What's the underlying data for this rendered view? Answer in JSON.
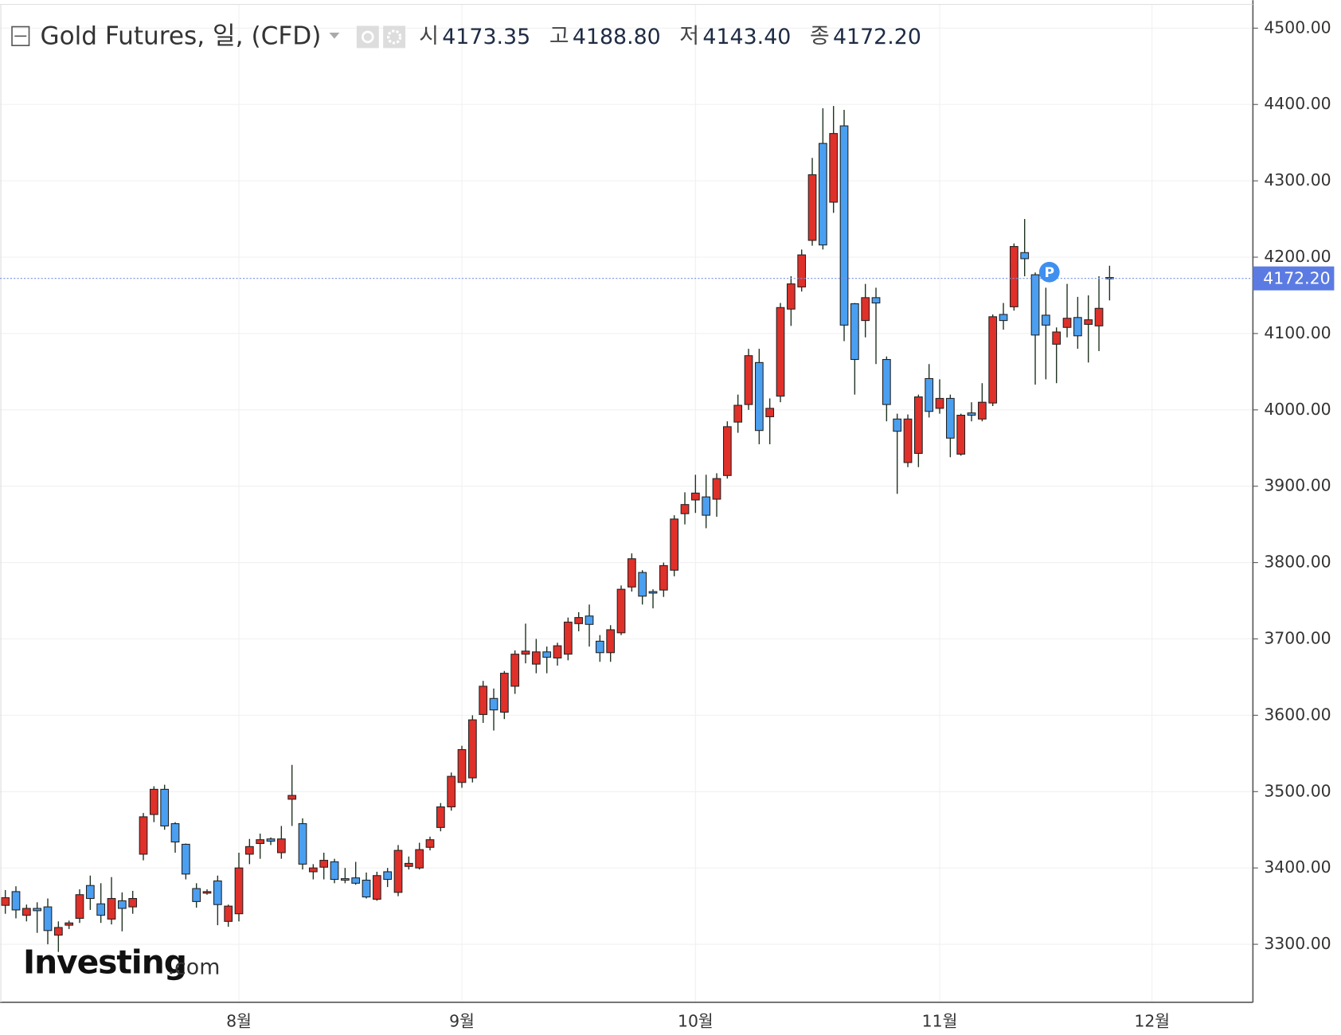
{
  "chart_data": {
    "type": "candlestick",
    "title": "Gold Futures, 일, (CFD)",
    "ohlc_legend": [
      {
        "label": "시",
        "value": "4173.35"
      },
      {
        "label": "고",
        "value": "4188.80"
      },
      {
        "label": "저",
        "value": "4143.40"
      },
      {
        "label": "종",
        "value": "4172.20"
      }
    ],
    "categories": [
      null,
      null,
      null,
      null,
      null,
      null,
      null,
      null,
      null,
      null,
      null,
      null,
      null,
      null,
      null,
      null,
      null,
      null,
      null,
      null,
      null,
      null,
      "8월",
      null,
      null,
      null,
      null,
      null,
      null,
      null,
      null,
      null,
      null,
      null,
      null,
      null,
      null,
      null,
      null,
      null,
      null,
      null,
      null,
      "9월",
      null,
      null,
      null,
      null,
      null,
      null,
      null,
      null,
      null,
      null,
      null,
      null,
      null,
      null,
      null,
      null,
      null,
      null,
      null,
      null,
      null,
      "10월",
      null,
      null,
      null,
      null,
      null,
      null,
      null,
      null,
      null,
      null,
      null,
      null,
      null,
      null,
      null,
      null,
      null,
      null,
      null,
      null,
      null,
      null,
      "11월",
      null,
      null,
      null,
      null,
      null,
      null,
      null,
      null,
      null,
      null,
      null,
      null,
      null,
      null,
      null,
      null,
      null,
      null,
      null,
      "12월",
      null,
      null,
      null,
      null,
      null,
      null,
      null,
      null,
      null
    ],
    "open": [
      3351,
      3369,
      3338,
      3347,
      3349,
      3312,
      3325,
      3334,
      3377,
      3353,
      3333,
      3357,
      3349,
      3418,
      3470,
      3503,
      3458,
      3431,
      3373,
      3367,
      3383,
      3330,
      3340,
      3418,
      3432,
      3438,
      3420,
      3490,
      3458,
      3395,
      3401,
      3408,
      3386,
      3387,
      3384,
      3359,
      3395,
      3368,
      3402,
      3400,
      3427,
      3453,
      3480,
      3512,
      3518,
      3601,
      3622,
      3604,
      3638,
      3680,
      3667,
      3683,
      3675,
      3680,
      3720,
      3730,
      3697,
      3682,
      3708,
      3768,
      3787,
      3762,
      3764,
      3790,
      3864,
      3882,
      3886,
      3883,
      3914,
      3984,
      4007,
      4062,
      3991,
      4018,
      4132,
      4161,
      4222,
      4349,
      4272,
      4372,
      4139,
      4117,
      4147,
      4066,
      3988,
      3931,
      3943,
      4041,
      4002,
      4015,
      3942,
      3996,
      3988,
      4009,
      4125,
      4135,
      4206,
      4177,
      4124,
      4086,
      4108,
      4121,
      4112,
      4110,
      4173.35,
      null,
      null,
      null,
      null,
      null,
      null,
      null,
      null,
      null,
      null,
      null,
      null,
      null
    ],
    "high": [
      3371,
      3376,
      3352,
      3355,
      3360,
      3330,
      3331,
      3372,
      3390,
      3380,
      3388,
      3368,
      3370,
      3472,
      3507,
      3509,
      3460,
      3432,
      3380,
      3372,
      3390,
      3352,
      3420,
      3438,
      3445,
      3440,
      3455,
      3535,
      3465,
      3405,
      3420,
      3412,
      3400,
      3408,
      3394,
      3395,
      3400,
      3430,
      3415,
      3433,
      3441,
      3485,
      3525,
      3560,
      3600,
      3645,
      3635,
      3658,
      3685,
      3720,
      3700,
      3690,
      3695,
      3728,
      3735,
      3745,
      3705,
      3718,
      3770,
      3812,
      3790,
      3765,
      3800,
      3862,
      3892,
      3915,
      3915,
      3917,
      3985,
      4020,
      4080,
      4080,
      4015,
      4140,
      4175,
      4210,
      4330,
      4395,
      4398,
      4393,
      4140,
      4165,
      4160,
      4070,
      3995,
      3994,
      4020,
      4060,
      4040,
      4020,
      3995,
      4010,
      4035,
      4125,
      4140,
      4218,
      4250,
      4180,
      4160,
      4108,
      4165,
      4148,
      4150,
      4175,
      4188.8,
      null,
      null,
      null,
      null,
      null,
      null,
      null,
      null,
      null,
      null,
      null,
      null,
      null
    ],
    "low": [
      3340,
      3334,
      3330,
      3315,
      3300,
      3290,
      3320,
      3328,
      3345,
      3328,
      3326,
      3317,
      3340,
      3410,
      3460,
      3450,
      3420,
      3385,
      3348,
      3365,
      3325,
      3323,
      3330,
      3405,
      3412,
      3430,
      3412,
      3455,
      3398,
      3385,
      3385,
      3380,
      3380,
      3378,
      3360,
      3357,
      3375,
      3363,
      3398,
      3398,
      3423,
      3448,
      3475,
      3505,
      3512,
      3590,
      3580,
      3595,
      3628,
      3668,
      3655,
      3655,
      3665,
      3672,
      3710,
      3690,
      3670,
      3670,
      3705,
      3762,
      3745,
      3740,
      3755,
      3782,
      3850,
      3865,
      3845,
      3860,
      3910,
      3970,
      4000,
      3955,
      3955,
      4010,
      4110,
      4155,
      4215,
      4210,
      4258,
      4090,
      4020,
      4095,
      4060,
      3985,
      3890,
      3925,
      3925,
      3990,
      3995,
      3938,
      3940,
      3985,
      3985,
      4005,
      4105,
      4130,
      4175,
      4033,
      4040,
      4035,
      4095,
      4080,
      4062,
      4077,
      4143.4,
      null,
      null,
      null,
      null,
      null,
      null,
      null,
      null,
      null,
      null,
      null,
      null,
      null
    ],
    "close": [
      3361,
      3345,
      3347,
      3344,
      3318,
      3322,
      3328,
      3365,
      3360,
      3338,
      3360,
      3347,
      3360,
      3467,
      3503,
      3455,
      3434,
      3392,
      3356,
      3369,
      3352,
      3350,
      3400,
      3428,
      3437,
      3435,
      3438,
      3495,
      3405,
      3400,
      3410,
      3385,
      3384,
      3380,
      3362,
      3390,
      3385,
      3423,
      3406,
      3424,
      3437,
      3480,
      3520,
      3555,
      3594,
      3638,
      3607,
      3655,
      3680,
      3684,
      3683,
      3676,
      3691,
      3722,
      3728,
      3719,
      3682,
      3712,
      3765,
      3805,
      3756,
      3760,
      3796,
      3857,
      3876,
      3891,
      3862,
      3910,
      3978,
      4006,
      4071,
      3973,
      4002,
      4134,
      4165,
      4203,
      4308,
      4216,
      4362,
      4111,
      4066,
      4147,
      4140,
      4007,
      3972,
      3988,
      4017,
      3998,
      4015,
      3963,
      3993,
      3993,
      4010,
      4122,
      4117,
      4214,
      4198,
      4098,
      4111,
      4102,
      4120,
      4097,
      4118,
      4133,
      4172.2,
      null,
      null,
      null,
      null,
      null,
      null,
      null,
      null,
      null,
      null,
      null,
      null,
      null
    ],
    "up_color": "#e0302a",
    "down_color": "#4a9ff0",
    "ylim": [
      3224,
      4531
    ],
    "yticks": [
      {
        "value": 3300,
        "label": "3300.00"
      },
      {
        "value": 3400,
        "label": "3400.00"
      },
      {
        "value": 3500,
        "label": "3500.00"
      },
      {
        "value": 3600,
        "label": "3600.00"
      },
      {
        "value": 3700,
        "label": "3700.00"
      },
      {
        "value": 3800,
        "label": "3800.00"
      },
      {
        "value": 3900,
        "label": "3900.00"
      },
      {
        "value": 4000,
        "label": "4000.00"
      },
      {
        "value": 4100,
        "label": "4100.00"
      },
      {
        "value": 4200,
        "label": "4200.00"
      },
      {
        "value": 4300,
        "label": "4300.00"
      },
      {
        "value": 4400,
        "label": "4400.00"
      },
      {
        "value": 4500,
        "label": "4500.00"
      }
    ],
    "grid": true,
    "last_price": {
      "value": 4172.2,
      "label": "4172.20"
    },
    "annotation": "P",
    "watermark": {
      "brand": "Investing",
      "suffix": ".com"
    }
  }
}
